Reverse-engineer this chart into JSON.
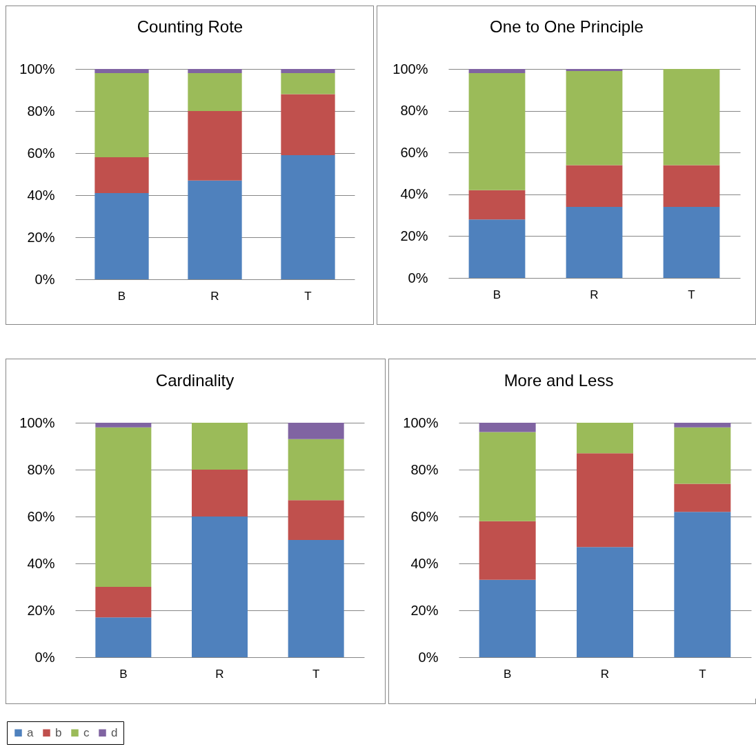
{
  "chart_data": [
    {
      "type": "bar",
      "title": "Counting Rote",
      "categories": [
        "B",
        "R",
        "T"
      ],
      "stacked": true,
      "ylim": [
        0,
        100
      ],
      "yticks": [
        {
          "value": 0,
          "label": "0%"
        },
        {
          "value": 20,
          "label": "20%"
        },
        {
          "value": 40,
          "label": "40%"
        },
        {
          "value": 60,
          "label": "60%"
        },
        {
          "value": 80,
          "label": "80%"
        },
        {
          "value": 100,
          "label": "100%"
        }
      ],
      "grid": "y",
      "series": [
        {
          "color": "#4f81bd",
          "values": [
            41,
            47,
            59
          ]
        },
        {
          "color": "#c0504d",
          "values": [
            17,
            33,
            29
          ]
        },
        {
          "color": "#9bbb59",
          "values": [
            40,
            18,
            10
          ]
        },
        {
          "color": "#8064a2",
          "values": [
            2,
            2,
            2
          ]
        }
      ]
    },
    {
      "type": "bar",
      "title": "One to One Principle",
      "categories": [
        "B",
        "R",
        "T"
      ],
      "stacked": true,
      "ylim": [
        0,
        100
      ],
      "yticks": [
        {
          "value": 0,
          "label": "0%"
        },
        {
          "value": 20,
          "label": "20%"
        },
        {
          "value": 40,
          "label": "40%"
        },
        {
          "value": 60,
          "label": "60%"
        },
        {
          "value": 80,
          "label": "80%"
        },
        {
          "value": 100,
          "label": "100%"
        }
      ],
      "grid": "y",
      "series": [
        {
          "color": "#4f81bd",
          "values": [
            28,
            34,
            34
          ]
        },
        {
          "color": "#c0504d",
          "values": [
            14,
            20,
            20
          ]
        },
        {
          "color": "#9bbb59",
          "values": [
            56,
            45,
            46
          ]
        },
        {
          "color": "#8064a2",
          "values": [
            2,
            1,
            0
          ]
        }
      ]
    },
    {
      "type": "bar",
      "title": "Cardinality",
      "categories": [
        "B",
        "R",
        "T"
      ],
      "stacked": true,
      "ylim": [
        0,
        100
      ],
      "yticks": [
        {
          "value": 0,
          "label": "0%"
        },
        {
          "value": 20,
          "label": "20%"
        },
        {
          "value": 40,
          "label": "40%"
        },
        {
          "value": 60,
          "label": "60%"
        },
        {
          "value": 80,
          "label": "80%"
        },
        {
          "value": 100,
          "label": "100%"
        }
      ],
      "grid": "y",
      "legend": "bottom left",
      "series": [
        {
          "name": "a",
          "color": "#4f81bd",
          "values": [
            17,
            60,
            50
          ]
        },
        {
          "name": "b",
          "color": "#c0504d",
          "values": [
            13,
            20,
            17
          ]
        },
        {
          "name": "c",
          "color": "#9bbb59",
          "values": [
            68,
            20,
            26
          ]
        },
        {
          "name": "d",
          "color": "#8064a2",
          "values": [
            2,
            0,
            7
          ]
        }
      ]
    },
    {
      "type": "bar",
      "title": "More and Less",
      "categories": [
        "B",
        "R",
        "T"
      ],
      "stacked": true,
      "ylim": [
        0,
        100
      ],
      "yticks": [
        {
          "value": 0,
          "label": "0%"
        },
        {
          "value": 20,
          "label": "20%"
        },
        {
          "value": 40,
          "label": "40%"
        },
        {
          "value": 60,
          "label": "60%"
        },
        {
          "value": 80,
          "label": "80%"
        },
        {
          "value": 100,
          "label": "100%"
        }
      ],
      "grid": "y",
      "series": [
        {
          "color": "#4f81bd",
          "values": [
            33,
            47,
            62
          ]
        },
        {
          "color": "#c0504d",
          "values": [
            25,
            40,
            12
          ]
        },
        {
          "color": "#9bbb59",
          "values": [
            38,
            13,
            24
          ]
        },
        {
          "color": "#8064a2",
          "values": [
            4,
            0,
            2
          ]
        }
      ]
    }
  ]
}
